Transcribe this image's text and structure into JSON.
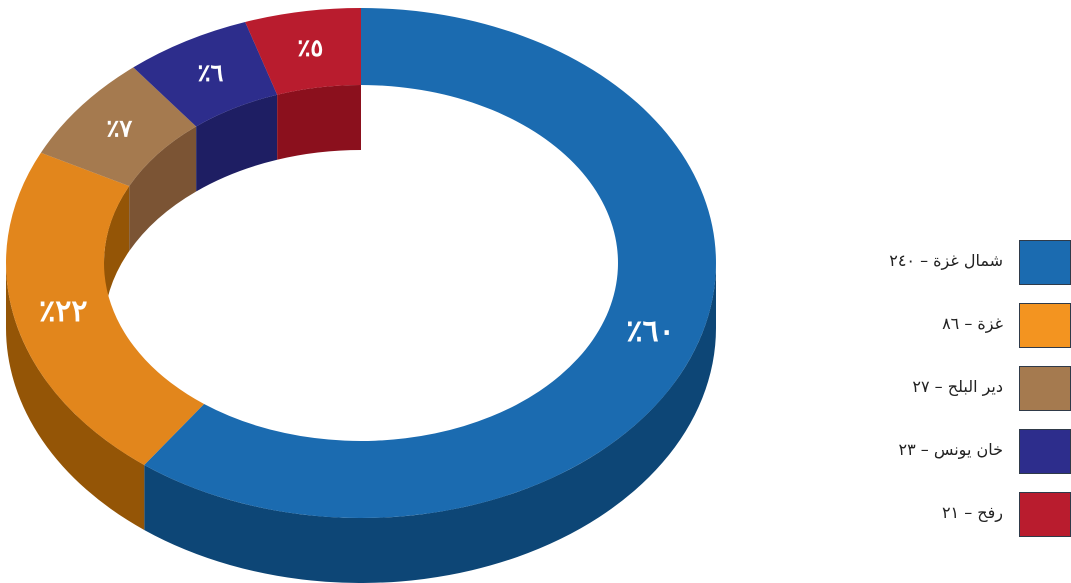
{
  "chart_data": {
    "type": "pie",
    "variant": "3d-donut",
    "categories": [
      "شمال غزة",
      "غزة",
      "دير البلح",
      "خان يونس",
      "رفح"
    ],
    "values": [
      240,
      86,
      27,
      23,
      21
    ],
    "percent_labels": [
      "٪٦٠",
      "٪٢٢",
      "٪٧",
      "٪٦",
      "٪٥"
    ],
    "legend_labels": [
      "شمال غزة – ٢٤٠",
      "غزة – ٨٦",
      "دير البلح – ٢٧",
      "خان يونس – ٢٣",
      "رفح – ٢١"
    ],
    "colors": {
      "top": [
        "#1b6bb0",
        "#e2861c",
        "#a57a4f",
        "#2d2d8c",
        "#b91c2e"
      ],
      "side": [
        "#0d4676",
        "#945506",
        "#7b5434",
        "#1e1e63",
        "#8b101d"
      ]
    },
    "legend_placement": "right"
  }
}
